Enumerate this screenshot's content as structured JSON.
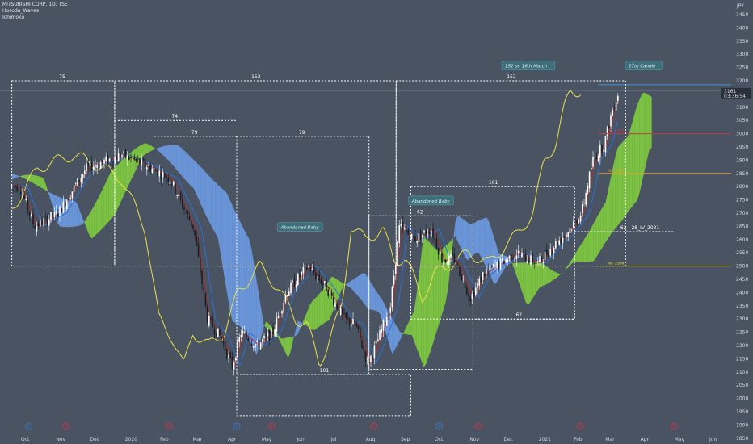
{
  "header": {
    "symbol": "MITSUBISHI CORP, 1D, TSE",
    "indicators": [
      "Hosoda_Waves",
      "Ichimoku"
    ]
  },
  "currency_badge": "JPY",
  "price_label": {
    "price": "3161",
    "countdown": "03:36:54"
  },
  "colors": {
    "background": "#4a5362",
    "up_candle": "#ffffff",
    "down_candle": "#1a1d22",
    "tenkan": "#b02a30",
    "kijun": "#2e6fd1",
    "chikou": "#e8e04a",
    "kumo_bull": "#7cc242",
    "kumo_bear": "#6a95d8",
    "count_box": "#ffffff",
    "price_line": "#4a8fe0",
    "line_3000": "#c0394a",
    "line_2850": "#e8a020",
    "line_2500": "#e8e04a"
  },
  "chart_data": {
    "type": "candlestick",
    "title": "MITSUBISHI CORP, 1D, TSE",
    "y_axis": {
      "range": [
        1835,
        3475
      ],
      "ticks": [
        1850,
        1900,
        1950,
        2000,
        2050,
        2100,
        2150,
        2200,
        2250,
        2300,
        2350,
        2400,
        2450,
        2500,
        2550,
        2600,
        2650,
        2700,
        2750,
        2800,
        2850,
        2900,
        2950,
        3000,
        3050,
        3100,
        3150,
        3200,
        3250,
        3300,
        3350,
        3400,
        3450
      ]
    },
    "x_axis": {
      "labels": [
        "Oct",
        "Nov",
        "Dec",
        "2020",
        "Feb",
        "Mar",
        "Apr",
        "May",
        "Jun",
        "Jul",
        "Aug",
        "Sep",
        "Oct",
        "Nov",
        "Dec",
        "2021",
        "Feb",
        "Mar",
        "Apr",
        "May",
        "Jun"
      ]
    },
    "grid": false,
    "last_price": 3161,
    "price_anchors": [
      [
        "2019-09-27",
        2800
      ],
      [
        "2019-10-10",
        2650
      ],
      [
        "2019-10-31",
        2700
      ],
      [
        "2019-11-25",
        2870
      ],
      [
        "2019-12-26",
        2920
      ],
      [
        "2020-01-17",
        2880
      ],
      [
        "2020-02-07",
        2830
      ],
      [
        "2020-02-28",
        2640
      ],
      [
        "2020-03-11",
        2300
      ],
      [
        "2020-03-23",
        2230
      ],
      [
        "2020-04-02",
        2120
      ],
      [
        "2020-04-10",
        2250
      ],
      [
        "2020-04-24",
        2200
      ],
      [
        "2020-05-08",
        2250
      ],
      [
        "2020-05-20",
        2400
      ],
      [
        "2020-06-08",
        2500
      ],
      [
        "2020-06-24",
        2420
      ],
      [
        "2020-07-10",
        2300
      ],
      [
        "2020-07-20",
        2280
      ],
      [
        "2020-07-31",
        2130
      ],
      [
        "2020-08-07",
        2200
      ],
      [
        "2020-08-20",
        2350
      ],
      [
        "2020-08-28",
        2650
      ],
      [
        "2020-09-10",
        2600
      ],
      [
        "2020-09-25",
        2640
      ],
      [
        "2020-10-05",
        2520
      ],
      [
        "2020-10-15",
        2530
      ],
      [
        "2020-10-30",
        2380
      ],
      [
        "2020-11-10",
        2470
      ],
      [
        "2020-11-25",
        2510
      ],
      [
        "2020-12-10",
        2550
      ],
      [
        "2020-12-28",
        2510
      ],
      [
        "2021-01-12",
        2580
      ],
      [
        "2021-01-22",
        2620
      ],
      [
        "2021-02-05",
        2700
      ],
      [
        "2021-02-15",
        2900
      ],
      [
        "2021-02-25",
        2960
      ],
      [
        "2021-03-05",
        3100
      ],
      [
        "2021-03-10",
        3161
      ]
    ],
    "horizontal_levels": [
      {
        "price": 3185,
        "label": ""
      },
      {
        "price": 3000,
        "label": "V - 2930"
      },
      {
        "price": 2850,
        "label": "N - 2845"
      },
      {
        "price": 2500,
        "label": "NT 2506"
      }
    ],
    "count_boxes": [
      {
        "label": "152",
        "start": "2019-12-20",
        "end": "2020-08-25",
        "top": 3200,
        "bottom": 2500
      },
      {
        "label": "152",
        "start": "2020-08-25",
        "end": "2021-03-16",
        "top": 3200,
        "bottom": 2500
      },
      {
        "label": "75",
        "start": "2019-09-20",
        "end": "2019-12-20",
        "top": 3200,
        "bottom": 2500
      },
      {
        "label": "74",
        "start": "2019-12-20",
        "end": "2020-04-06",
        "top": 3050,
        "bottom": 3050
      },
      {
        "label": "79",
        "start": "2020-01-24",
        "end": "2020-04-06",
        "top": 2990,
        "bottom": 2990
      },
      {
        "label": "79",
        "start": "2020-04-06",
        "end": "2020-08-01",
        "top": 2990,
        "bottom": 2090
      },
      {
        "label": "101",
        "start": "2020-04-06",
        "end": "2020-09-07",
        "top": 2090,
        "bottom": 1935
      },
      {
        "label": "62",
        "start": "2020-08-01",
        "end": "2020-11-01",
        "top": 2690,
        "bottom": 2110
      },
      {
        "label": "101",
        "start": "2020-09-07",
        "end": "2021-01-30",
        "top": 2800,
        "bottom": 2300
      },
      {
        "label": "62",
        "start": "2020-10-25",
        "end": "2021-01-30",
        "top": 2300,
        "bottom": 2300
      },
      {
        "label": "62 - 28_IV_2021",
        "start": "2021-01-30",
        "end": "2021-04-28",
        "top": 2630,
        "bottom": 2630
      }
    ],
    "annotations": [
      {
        "text": "Abandoned Baby",
        "date": "2020-06-01",
        "price": 2640
      },
      {
        "text": "Abandoned Baby",
        "date": "2020-09-25",
        "price": 2740
      },
      {
        "text": "152 on 16th March",
        "date": "2020-12-20",
        "price": 3250
      },
      {
        "text": "27th Candle",
        "date": "2021-04-01",
        "price": 3250
      }
    ],
    "event_markers": [
      {
        "date": "2019-10-05",
        "kind": "E"
      },
      {
        "date": "2019-11-07",
        "kind": "D"
      },
      {
        "date": "2020-02-06",
        "kind": "D"
      },
      {
        "date": "2020-04-06",
        "kind": "E"
      },
      {
        "date": "2020-05-07",
        "kind": "D"
      },
      {
        "date": "2020-08-05",
        "kind": "D"
      },
      {
        "date": "2020-10-02",
        "kind": "E"
      },
      {
        "date": "2020-11-06",
        "kind": "D"
      },
      {
        "date": "2021-02-04",
        "kind": "D"
      },
      {
        "date": "2021-04-28",
        "kind": "D"
      }
    ]
  }
}
